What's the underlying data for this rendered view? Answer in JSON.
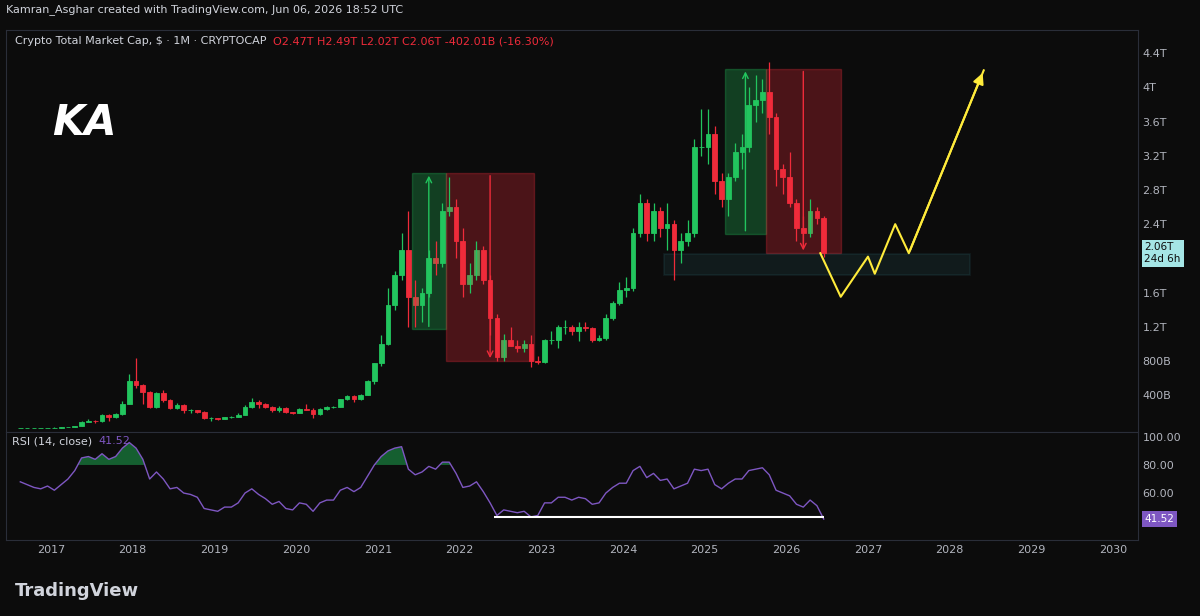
{
  "header": "Kamran_Asghar created with TradingView.com, Jun 06, 2026 18:52 UTC",
  "watermark": "KA",
  "footer": "TradingView",
  "chart_data": [
    {
      "type": "candlestick",
      "title": "Crypto Total Market Cap, $ · 1M · CRYPTOCAP",
      "ohlc_text": "O2.47T H2.49T L2.02T C2.06T -402.01B (-16.30%)",
      "x": [
        "2016-08",
        "2016-09",
        "2016-10",
        "2016-11",
        "2016-12",
        "2017-01",
        "2017-02",
        "2017-03",
        "2017-04",
        "2017-05",
        "2017-06",
        "2017-07",
        "2017-08",
        "2017-09",
        "2017-10",
        "2017-11",
        "2017-12",
        "2018-01",
        "2018-02",
        "2018-03",
        "2018-04",
        "2018-05",
        "2018-06",
        "2018-07",
        "2018-08",
        "2018-09",
        "2018-10",
        "2018-11",
        "2018-12",
        "2019-01",
        "2019-02",
        "2019-03",
        "2019-04",
        "2019-05",
        "2019-06",
        "2019-07",
        "2019-08",
        "2019-09",
        "2019-10",
        "2019-11",
        "2019-12",
        "2020-01",
        "2020-02",
        "2020-03",
        "2020-04",
        "2020-05",
        "2020-06",
        "2020-07",
        "2020-08",
        "2020-09",
        "2020-10",
        "2020-11",
        "2020-12",
        "2021-01",
        "2021-02",
        "2021-03",
        "2021-04",
        "2021-05",
        "2021-06",
        "2021-07",
        "2021-08",
        "2021-09",
        "2021-10",
        "2021-11",
        "2021-12",
        "2022-01",
        "2022-02",
        "2022-03",
        "2022-04",
        "2022-05",
        "2022-06",
        "2022-07",
        "2022-08",
        "2022-09",
        "2022-10",
        "2022-11",
        "2022-12",
        "2023-01",
        "2023-02",
        "2023-03",
        "2023-04",
        "2023-05",
        "2023-06",
        "2023-07",
        "2023-08",
        "2023-09",
        "2023-10",
        "2023-11",
        "2023-12",
        "2024-01",
        "2024-02",
        "2024-03",
        "2024-04",
        "2024-05",
        "2024-06",
        "2024-07",
        "2024-08",
        "2024-09",
        "2024-10",
        "2024-11",
        "2024-12",
        "2025-01",
        "2025-02",
        "2025-03",
        "2025-04",
        "2025-05",
        "2025-06",
        "2025-07",
        "2025-08",
        "2025-09",
        "2025-10",
        "2025-11",
        "2025-12",
        "2026-01",
        "2026-02",
        "2026-03",
        "2026-04",
        "2026-05",
        "2026-06"
      ],
      "ohlc": [
        [
          0.009,
          0.011,
          0.009,
          0.01
        ],
        [
          0.01,
          0.012,
          0.01,
          0.011
        ],
        [
          0.011,
          0.013,
          0.011,
          0.012
        ],
        [
          0.012,
          0.015,
          0.012,
          0.014
        ],
        [
          0.014,
          0.018,
          0.014,
          0.017
        ],
        [
          0.017,
          0.021,
          0.016,
          0.019
        ],
        [
          0.019,
          0.023,
          0.018,
          0.022
        ],
        [
          0.022,
          0.029,
          0.021,
          0.026
        ],
        [
          0.026,
          0.041,
          0.025,
          0.04
        ],
        [
          0.04,
          0.095,
          0.039,
          0.09
        ],
        [
          0.09,
          0.116,
          0.085,
          0.1
        ],
        [
          0.1,
          0.11,
          0.07,
          0.095
        ],
        [
          0.095,
          0.18,
          0.09,
          0.17
        ],
        [
          0.17,
          0.18,
          0.1,
          0.14
        ],
        [
          0.14,
          0.185,
          0.135,
          0.175
        ],
        [
          0.175,
          0.33,
          0.17,
          0.3
        ],
        [
          0.3,
          0.65,
          0.29,
          0.57
        ],
        [
          0.57,
          0.83,
          0.48,
          0.52
        ],
        [
          0.52,
          0.53,
          0.3,
          0.44
        ],
        [
          0.44,
          0.45,
          0.25,
          0.26
        ],
        [
          0.26,
          0.44,
          0.25,
          0.42
        ],
        [
          0.42,
          0.46,
          0.32,
          0.34
        ],
        [
          0.34,
          0.35,
          0.24,
          0.25
        ],
        [
          0.25,
          0.31,
          0.24,
          0.28
        ],
        [
          0.28,
          0.29,
          0.19,
          0.22
        ],
        [
          0.22,
          0.24,
          0.19,
          0.22
        ],
        [
          0.22,
          0.22,
          0.19,
          0.2
        ],
        [
          0.2,
          0.21,
          0.12,
          0.13
        ],
        [
          0.13,
          0.14,
          0.1,
          0.13
        ],
        [
          0.13,
          0.135,
          0.11,
          0.12
        ],
        [
          0.12,
          0.145,
          0.115,
          0.14
        ],
        [
          0.14,
          0.15,
          0.135,
          0.145
        ],
        [
          0.145,
          0.19,
          0.14,
          0.17
        ],
        [
          0.17,
          0.28,
          0.165,
          0.26
        ],
        [
          0.26,
          0.36,
          0.25,
          0.32
        ],
        [
          0.32,
          0.34,
          0.25,
          0.29
        ],
        [
          0.29,
          0.31,
          0.25,
          0.26
        ],
        [
          0.26,
          0.27,
          0.2,
          0.22
        ],
        [
          0.22,
          0.27,
          0.2,
          0.25
        ],
        [
          0.25,
          0.255,
          0.19,
          0.2
        ],
        [
          0.2,
          0.205,
          0.18,
          0.19
        ],
        [
          0.19,
          0.245,
          0.185,
          0.24
        ],
        [
          0.24,
          0.29,
          0.225,
          0.23
        ],
        [
          0.23,
          0.245,
          0.13,
          0.18
        ],
        [
          0.18,
          0.25,
          0.17,
          0.24
        ],
        [
          0.24,
          0.275,
          0.23,
          0.26
        ],
        [
          0.26,
          0.275,
          0.25,
          0.26
        ],
        [
          0.26,
          0.355,
          0.255,
          0.35
        ],
        [
          0.35,
          0.4,
          0.34,
          0.39
        ],
        [
          0.39,
          0.4,
          0.32,
          0.35
        ],
        [
          0.35,
          0.41,
          0.34,
          0.4
        ],
        [
          0.4,
          0.58,
          0.4,
          0.56
        ],
        [
          0.56,
          0.78,
          0.53,
          0.77
        ],
        [
          0.77,
          1.1,
          0.74,
          1.0
        ],
        [
          1.0,
          1.65,
          0.99,
          1.45
        ],
        [
          1.45,
          1.85,
          1.4,
          1.8
        ],
        [
          1.8,
          2.3,
          1.75,
          2.1
        ],
        [
          2.1,
          2.55,
          1.2,
          1.55
        ],
        [
          1.55,
          1.75,
          1.2,
          1.45
        ],
        [
          1.45,
          1.65,
          1.25,
          1.6
        ],
        [
          1.6,
          2.1,
          1.55,
          2.0
        ],
        [
          2.0,
          2.2,
          1.8,
          1.95
        ],
        [
          1.95,
          2.65,
          1.9,
          2.55
        ],
        [
          2.55,
          2.95,
          2.5,
          2.6
        ],
        [
          2.6,
          2.7,
          2.0,
          2.2
        ],
        [
          2.2,
          2.35,
          1.55,
          1.7
        ],
        [
          1.7,
          1.95,
          1.6,
          1.8
        ],
        [
          1.8,
          2.2,
          1.75,
          2.1
        ],
        [
          2.1,
          2.15,
          1.7,
          1.75
        ],
        [
          1.75,
          1.8,
          1.1,
          1.3
        ],
        [
          1.3,
          1.35,
          0.8,
          0.85
        ],
        [
          0.85,
          1.12,
          0.8,
          1.05
        ],
        [
          1.05,
          1.2,
          0.97,
          0.98
        ],
        [
          0.98,
          1.05,
          0.9,
          0.95
        ],
        [
          0.95,
          1.05,
          0.9,
          1.0
        ],
        [
          1.0,
          1.1,
          0.73,
          0.8
        ],
        [
          0.8,
          0.86,
          0.76,
          0.79
        ],
        [
          0.79,
          1.06,
          0.78,
          1.04
        ],
        [
          1.04,
          1.15,
          1.0,
          1.05
        ],
        [
          1.05,
          1.22,
          0.95,
          1.2
        ],
        [
          1.2,
          1.28,
          1.12,
          1.2
        ],
        [
          1.2,
          1.22,
          1.1,
          1.15
        ],
        [
          1.15,
          1.25,
          1.03,
          1.2
        ],
        [
          1.2,
          1.26,
          1.15,
          1.18
        ],
        [
          1.18,
          1.2,
          1.02,
          1.05
        ],
        [
          1.05,
          1.1,
          1.03,
          1.07
        ],
        [
          1.07,
          1.35,
          1.05,
          1.3
        ],
        [
          1.3,
          1.5,
          1.28,
          1.48
        ],
        [
          1.48,
          1.72,
          1.45,
          1.63
        ],
        [
          1.63,
          1.78,
          1.55,
          1.65
        ],
        [
          1.65,
          2.35,
          1.62,
          2.3
        ],
        [
          2.3,
          2.75,
          2.25,
          2.65
        ],
        [
          2.65,
          2.7,
          2.2,
          2.3
        ],
        [
          2.3,
          2.65,
          2.2,
          2.55
        ],
        [
          2.55,
          2.6,
          2.25,
          2.35
        ],
        [
          2.35,
          2.65,
          2.1,
          2.4
        ],
        [
          2.4,
          2.45,
          1.75,
          2.1
        ],
        [
          2.1,
          2.3,
          1.95,
          2.2
        ],
        [
          2.2,
          2.45,
          2.15,
          2.3
        ],
        [
          2.3,
          3.4,
          2.25,
          3.3
        ],
        [
          3.3,
          3.75,
          3.2,
          3.3
        ],
        [
          3.3,
          3.75,
          3.1,
          3.45
        ],
        [
          3.45,
          3.55,
          2.75,
          2.9
        ],
        [
          2.9,
          3.0,
          2.6,
          2.7
        ],
        [
          2.7,
          3.0,
          2.5,
          2.95
        ],
        [
          2.95,
          3.35,
          2.9,
          3.25
        ],
        [
          3.25,
          3.45,
          3.05,
          3.3
        ],
        [
          3.3,
          4.0,
          3.25,
          3.8
        ],
        [
          3.8,
          4.15,
          3.6,
          3.85
        ],
        [
          3.85,
          4.1,
          3.7,
          3.95
        ],
        [
          3.95,
          4.3,
          3.45,
          3.65
        ],
        [
          3.65,
          3.7,
          2.85,
          3.05
        ],
        [
          3.05,
          3.1,
          2.75,
          2.95
        ],
        [
          2.95,
          3.25,
          2.6,
          2.65
        ],
        [
          2.65,
          2.7,
          2.2,
          2.35
        ],
        [
          2.35,
          2.5,
          2.15,
          2.3
        ],
        [
          2.3,
          2.7,
          2.25,
          2.55
        ],
        [
          2.55,
          2.6,
          2.4,
          2.47
        ],
        [
          2.47,
          2.49,
          2.02,
          2.06
        ]
      ],
      "xlim": [
        2016.45,
        2030.3
      ],
      "xticks": [
        2017,
        2018,
        2019,
        2020,
        2021,
        2022,
        2023,
        2024,
        2025,
        2026,
        2027,
        2028,
        2029,
        2030
      ],
      "ylim": [
        -0.03,
        4.67
      ],
      "yticks": [
        {
          "value": 0.4,
          "label": "400B"
        },
        {
          "value": 0.8,
          "label": "800B"
        },
        {
          "value": 1.2,
          "label": "1.2T"
        },
        {
          "value": 1.6,
          "label": "1.6T"
        },
        {
          "value": 2.4,
          "label": "2.4T"
        },
        {
          "value": 2.8,
          "label": "2.8T"
        },
        {
          "value": 3.2,
          "label": "3.2T"
        },
        {
          "value": 3.6,
          "label": "3.6T"
        },
        {
          "value": 4,
          "label": "4T"
        },
        {
          "value": 4.4,
          "label": "4.4T"
        }
      ],
      "grid": false,
      "last_price": {
        "value": 2.06,
        "label": "2.06T",
        "countdown": "24d 6h"
      },
      "position_boxes": [
        {
          "side": "long",
          "start": "2021-06",
          "end": "2021-11",
          "bottom": 1.17,
          "top": 3.0
        },
        {
          "side": "short",
          "start": "2021-11",
          "end": "2022-12",
          "bottom": 0.8,
          "top": 3.0
        },
        {
          "side": "long",
          "start": "2025-04",
          "end": "2025-10",
          "bottom": 2.29,
          "top": 4.22
        },
        {
          "side": "short",
          "start": "2025-10",
          "end": "2026-09",
          "bottom": 2.06,
          "top": 4.22
        }
      ],
      "support_zone": {
        "start": "2024-07",
        "end": "2028-04",
        "bottom": 1.8,
        "top": 2.05
      },
      "projection": {
        "x": [
          "2026-06",
          "2026-09",
          "2027-01",
          "2027-02",
          "2027-05",
          "2027-07",
          "2028-06"
        ],
        "values": [
          2.06,
          1.55,
          2.02,
          1.82,
          2.4,
          2.06,
          4.2
        ]
      }
    },
    {
      "type": "line",
      "title": "RSI (14, close)",
      "x": [
        "2016-08",
        "2016-09",
        "2016-10",
        "2016-11",
        "2016-12",
        "2017-01",
        "2017-02",
        "2017-03",
        "2017-04",
        "2017-05",
        "2017-06",
        "2017-07",
        "2017-08",
        "2017-09",
        "2017-10",
        "2017-11",
        "2017-12",
        "2018-01",
        "2018-02",
        "2018-03",
        "2018-04",
        "2018-05",
        "2018-06",
        "2018-07",
        "2018-08",
        "2018-09",
        "2018-10",
        "2018-11",
        "2018-12",
        "2019-01",
        "2019-02",
        "2019-03",
        "2019-04",
        "2019-05",
        "2019-06",
        "2019-07",
        "2019-08",
        "2019-09",
        "2019-10",
        "2019-11",
        "2019-12",
        "2020-01",
        "2020-02",
        "2020-03",
        "2020-04",
        "2020-05",
        "2020-06",
        "2020-07",
        "2020-08",
        "2020-09",
        "2020-10",
        "2020-11",
        "2020-12",
        "2021-01",
        "2021-02",
        "2021-03",
        "2021-04",
        "2021-05",
        "2021-06",
        "2021-07",
        "2021-08",
        "2021-09",
        "2021-10",
        "2021-11",
        "2021-12",
        "2022-01",
        "2022-02",
        "2022-03",
        "2022-04",
        "2022-05",
        "2022-06",
        "2022-07",
        "2022-08",
        "2022-09",
        "2022-10",
        "2022-11",
        "2022-12",
        "2023-01",
        "2023-02",
        "2023-03",
        "2023-04",
        "2023-05",
        "2023-06",
        "2023-07",
        "2023-08",
        "2023-09",
        "2023-10",
        "2023-11",
        "2023-12",
        "2024-01",
        "2024-02",
        "2024-03",
        "2024-04",
        "2024-05",
        "2024-06",
        "2024-07",
        "2024-08",
        "2024-09",
        "2024-10",
        "2024-11",
        "2024-12",
        "2025-01",
        "2025-02",
        "2025-03",
        "2025-04",
        "2025-05",
        "2025-06",
        "2025-07",
        "2025-08",
        "2025-09",
        "2025-10",
        "2025-11",
        "2025-12",
        "2026-01",
        "2026-02",
        "2026-03",
        "2026-04",
        "2026-05",
        "2026-06"
      ],
      "values": [
        68,
        66,
        64,
        63,
        65,
        62,
        66,
        70,
        76,
        85,
        86,
        84,
        88,
        84,
        86,
        92,
        96,
        92,
        84,
        70,
        75,
        70,
        63,
        64,
        60,
        59,
        57,
        49,
        48,
        47,
        50,
        50,
        53,
        60,
        63,
        59,
        56,
        52,
        54,
        49,
        48,
        53,
        52,
        47,
        53,
        55,
        55,
        62,
        64,
        61,
        64,
        72,
        80,
        86,
        90,
        92,
        93,
        77,
        73,
        75,
        79,
        77,
        82,
        82,
        74,
        64,
        65,
        68,
        61,
        53,
        44,
        48,
        47,
        46,
        47,
        43,
        44,
        53,
        53,
        57,
        57,
        55,
        57,
        56,
        52,
        53,
        60,
        64,
        67,
        67,
        76,
        79,
        71,
        74,
        69,
        70,
        63,
        65,
        67,
        77,
        76,
        77,
        66,
        63,
        67,
        70,
        70,
        76,
        77,
        78,
        73,
        62,
        60,
        58,
        52,
        50,
        55,
        51,
        41.52
      ],
      "xlim": [
        2016.45,
        2030.3
      ],
      "xticks": [
        2017,
        2018,
        2019,
        2020,
        2021,
        2022,
        2023,
        2024,
        2025,
        2026,
        2027,
        2028,
        2029,
        2030
      ],
      "ylim": [
        26.4,
        103.6
      ],
      "yticks": [
        {
          "value": 60,
          "label": "60.00"
        },
        {
          "value": 80,
          "label": "80.00"
        },
        {
          "value": 100,
          "label": "100.00"
        }
      ],
      "grid": false,
      "last_value": {
        "value": 41.52,
        "label": "41.52"
      },
      "overbought_level": 80,
      "support_line": {
        "start": "2022-06",
        "end": "2026-06",
        "value": 43
      }
    }
  ]
}
